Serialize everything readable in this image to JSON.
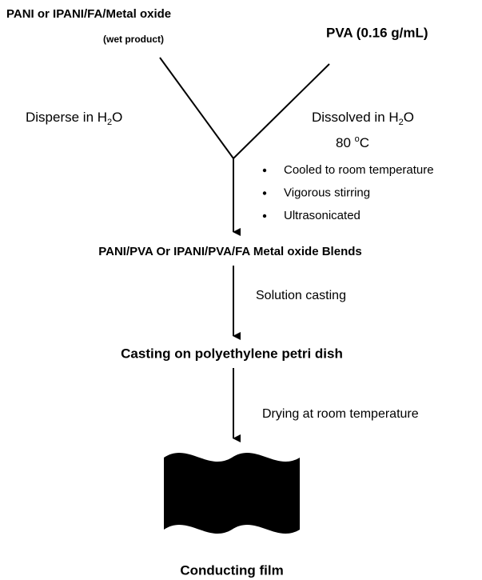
{
  "inputs": {
    "left": {
      "title": "PANI or IPANI/FA/Metal oxide",
      "note": "(wet product)"
    },
    "right": {
      "title": "PVA (0.16 g/mL)"
    }
  },
  "left_step": {
    "parts": [
      "Disperse in H",
      "2",
      "O"
    ]
  },
  "right_step": {
    "parts": [
      "Dissolved in H",
      "2",
      "O"
    ],
    "temperature": [
      "80 ",
      "o",
      "C"
    ]
  },
  "mixing_steps": [
    "Cooled to room temperature",
    "Vigorous stirring",
    "Ultrasonicated"
  ],
  "blend": "PANI/PVA Or IPANI/PVA/FA Metal oxide Blends",
  "step2": "Solution casting",
  "casting": "Casting on polyethylene petri dish",
  "step3": "Drying at room temperature",
  "product": "Conducting film"
}
